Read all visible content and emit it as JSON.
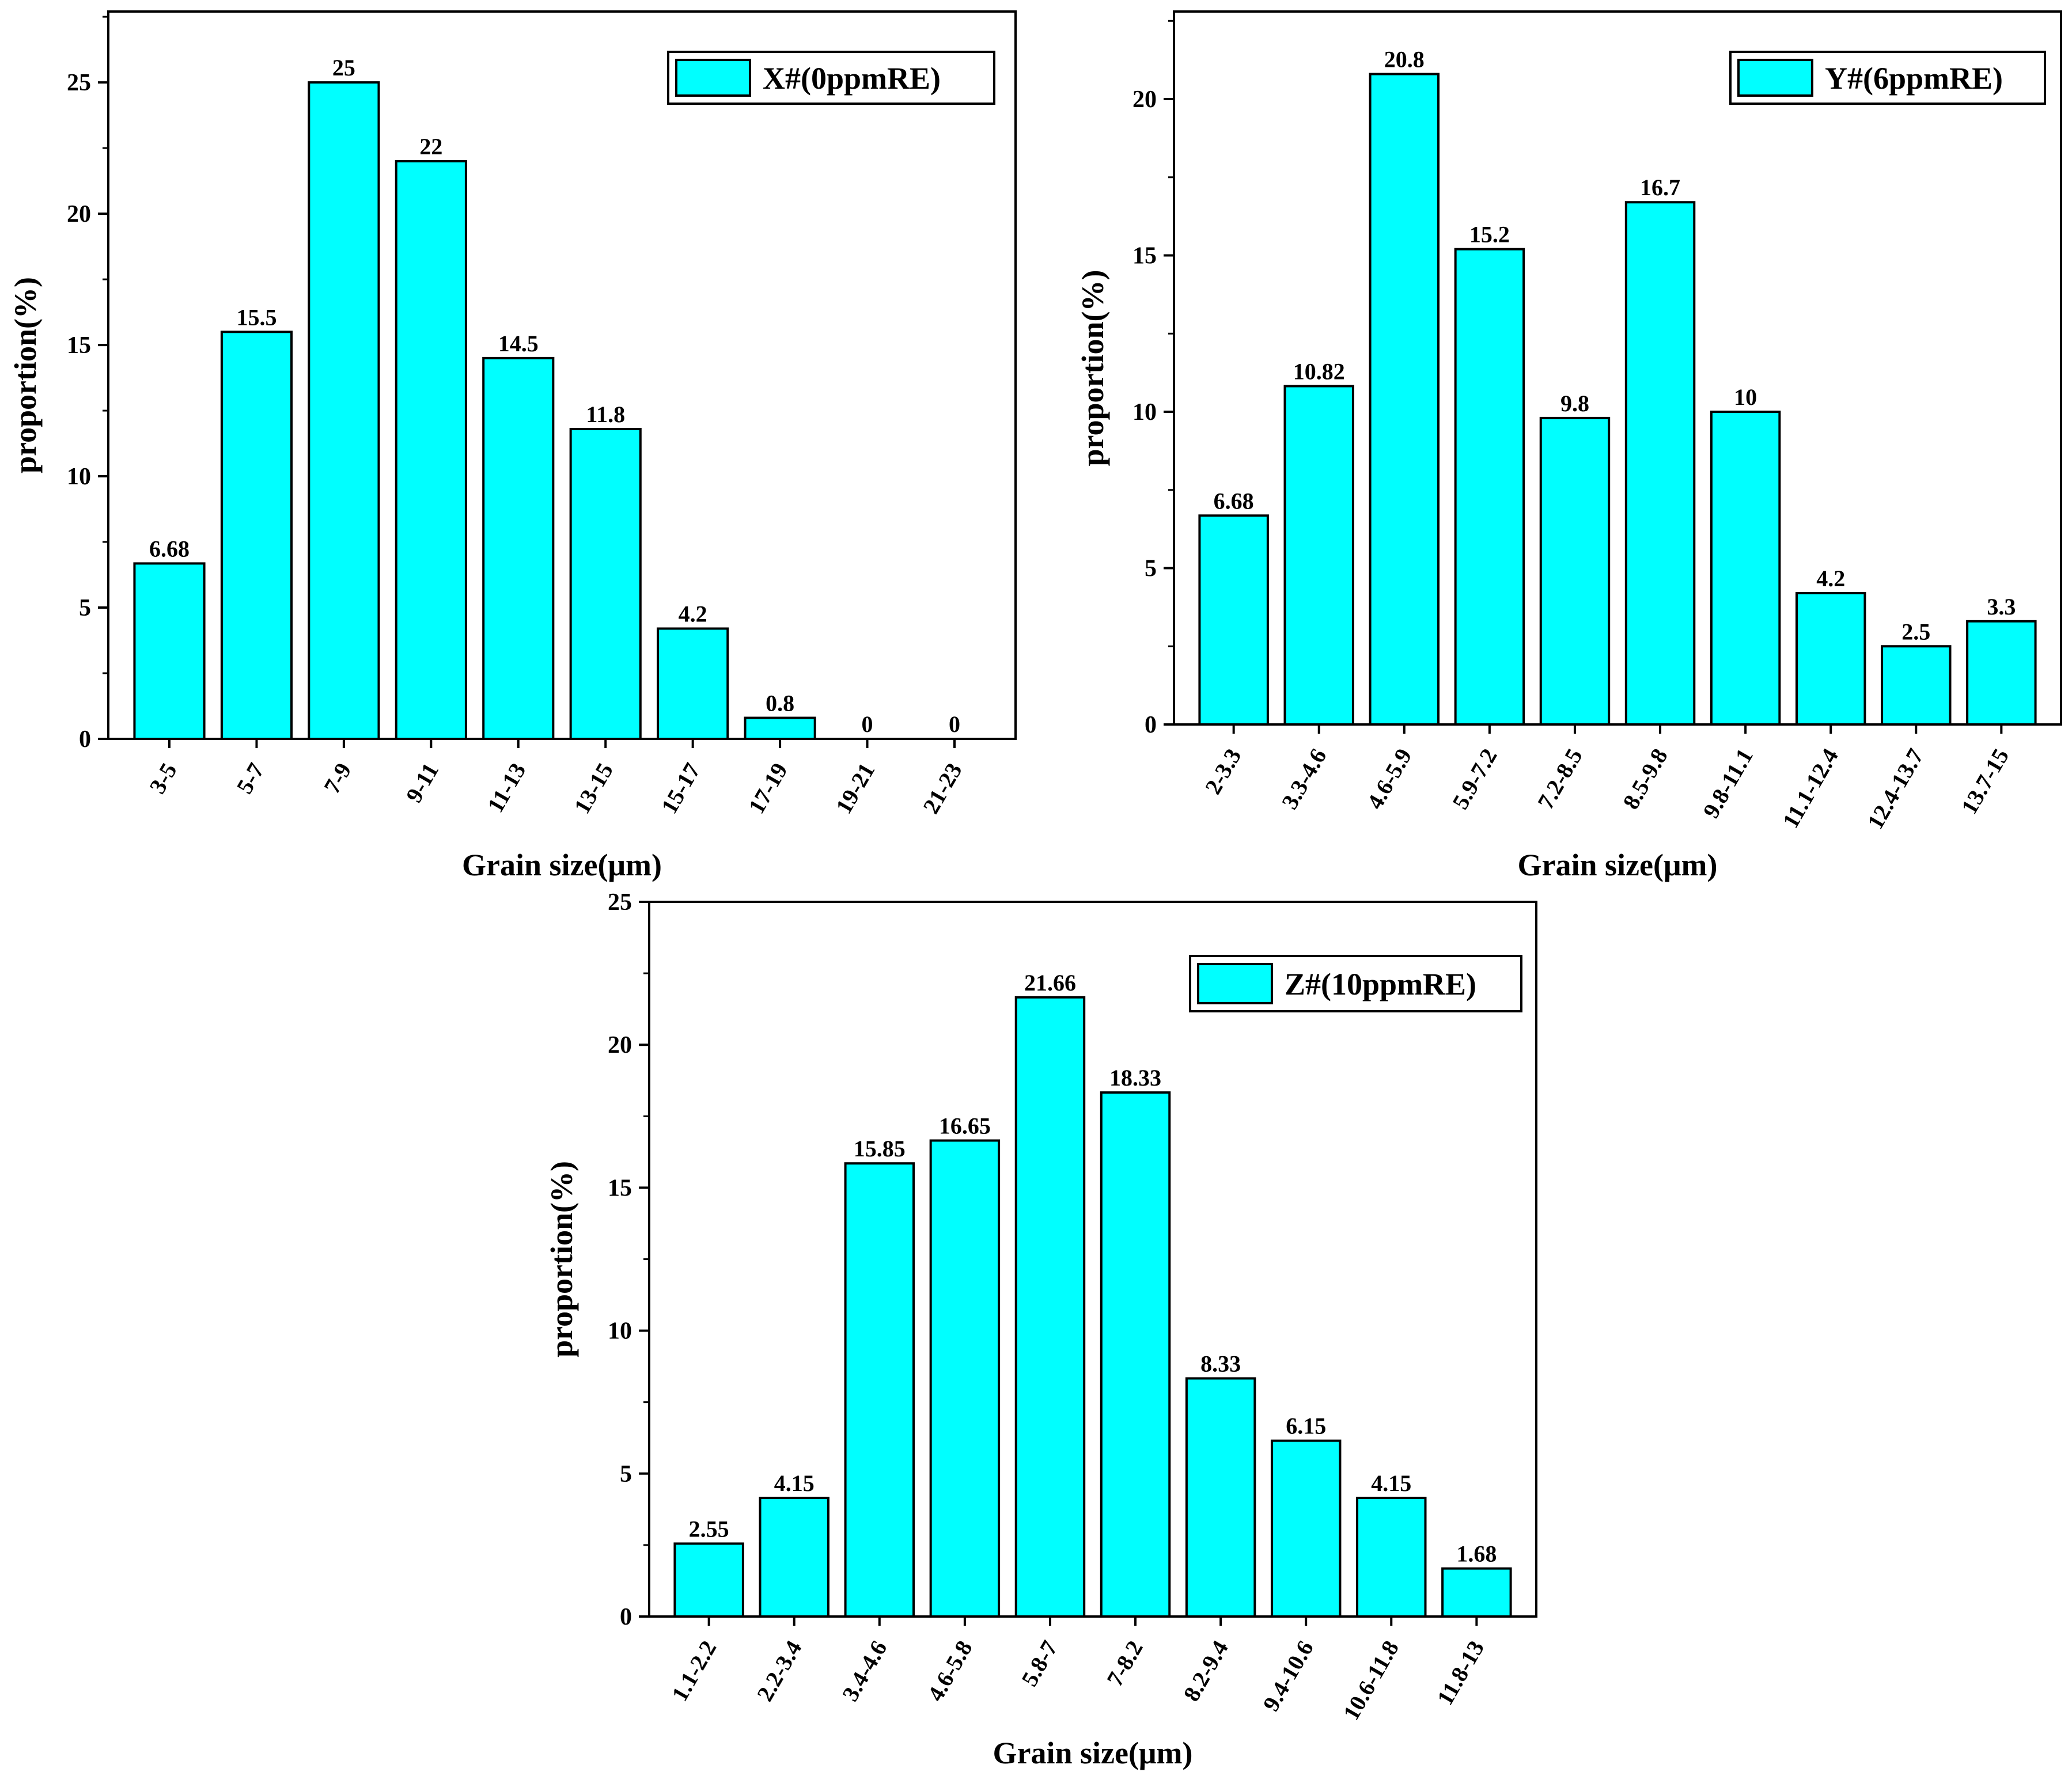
{
  "colors": {
    "bar_fill": "#00ffff",
    "bar_stroke": "#000000",
    "axis": "#000000",
    "background": "#ffffff"
  },
  "chart_data": [
    {
      "id": "x",
      "type": "bar",
      "title": "",
      "legend": "X#(0ppmRE)",
      "legend_position": "top-right",
      "xlabel": "Grain size(μm)",
      "ylabel": "proportion(%)",
      "ylim": [
        0,
        27.7
      ],
      "yticks": [
        0,
        5,
        10,
        15,
        20,
        25
      ],
      "grid": false,
      "categories": [
        "3-5",
        "5-7",
        "7-9",
        "9-11",
        "11-13",
        "13-15",
        "15-17",
        "17-19",
        "19-21",
        "21-23"
      ],
      "values": [
        6.68,
        15.5,
        25,
        22,
        14.5,
        11.8,
        4.2,
        0.8,
        0,
        0
      ],
      "value_labels": [
        "6.68",
        "15.5",
        "25",
        "22",
        "14.5",
        "11.8",
        "4.2",
        "0.8",
        "0",
        "0"
      ]
    },
    {
      "id": "y",
      "type": "bar",
      "title": "",
      "legend": "Y#(6ppmRE)",
      "legend_position": "top-right",
      "xlabel": "Grain size(μm)",
      "ylabel": "proportion(%)",
      "ylim": [
        0,
        22.8
      ],
      "yticks": [
        0,
        5,
        10,
        15,
        20
      ],
      "grid": false,
      "categories": [
        "2-3.3",
        "3.3-4.6",
        "4.6-5.9",
        "5.9-7.2",
        "7.2-8.5",
        "8.5-9.8",
        "9.8-11.1",
        "11.1-12.4",
        "12.4-13.7",
        "13.7-15"
      ],
      "values": [
        6.68,
        10.82,
        20.8,
        15.2,
        9.8,
        16.7,
        10,
        4.2,
        2.5,
        3.3
      ],
      "value_labels": [
        "6.68",
        "10.82",
        "20.8",
        "15.2",
        "9.8",
        "16.7",
        "10",
        "4.2",
        "2.5",
        "3.3"
      ]
    },
    {
      "id": "z",
      "type": "bar",
      "title": "",
      "legend": "Z#(10ppmRE)",
      "legend_position": "top-right",
      "xlabel": "Grain size(μm)",
      "ylabel": "proportion(%)",
      "ylim": [
        0,
        25
      ],
      "yticks": [
        0,
        5,
        10,
        15,
        20,
        25
      ],
      "grid": false,
      "categories": [
        "1.1-2.2",
        "2.2-3.4",
        "3.4-4.6",
        "4.6-5.8",
        "5.8-7",
        "7-8.2",
        "8.2-9.4",
        "9.4-10.6",
        "10.6-11.8",
        "11.8-13"
      ],
      "values": [
        2.55,
        4.15,
        15.85,
        16.65,
        21.66,
        18.33,
        8.33,
        6.15,
        4.15,
        1.68
      ],
      "value_labels": [
        "2.55",
        "4.15",
        "15.85",
        "16.65",
        "21.66",
        "18.33",
        "8.33",
        "6.15",
        "4.15",
        "1.68"
      ]
    }
  ]
}
